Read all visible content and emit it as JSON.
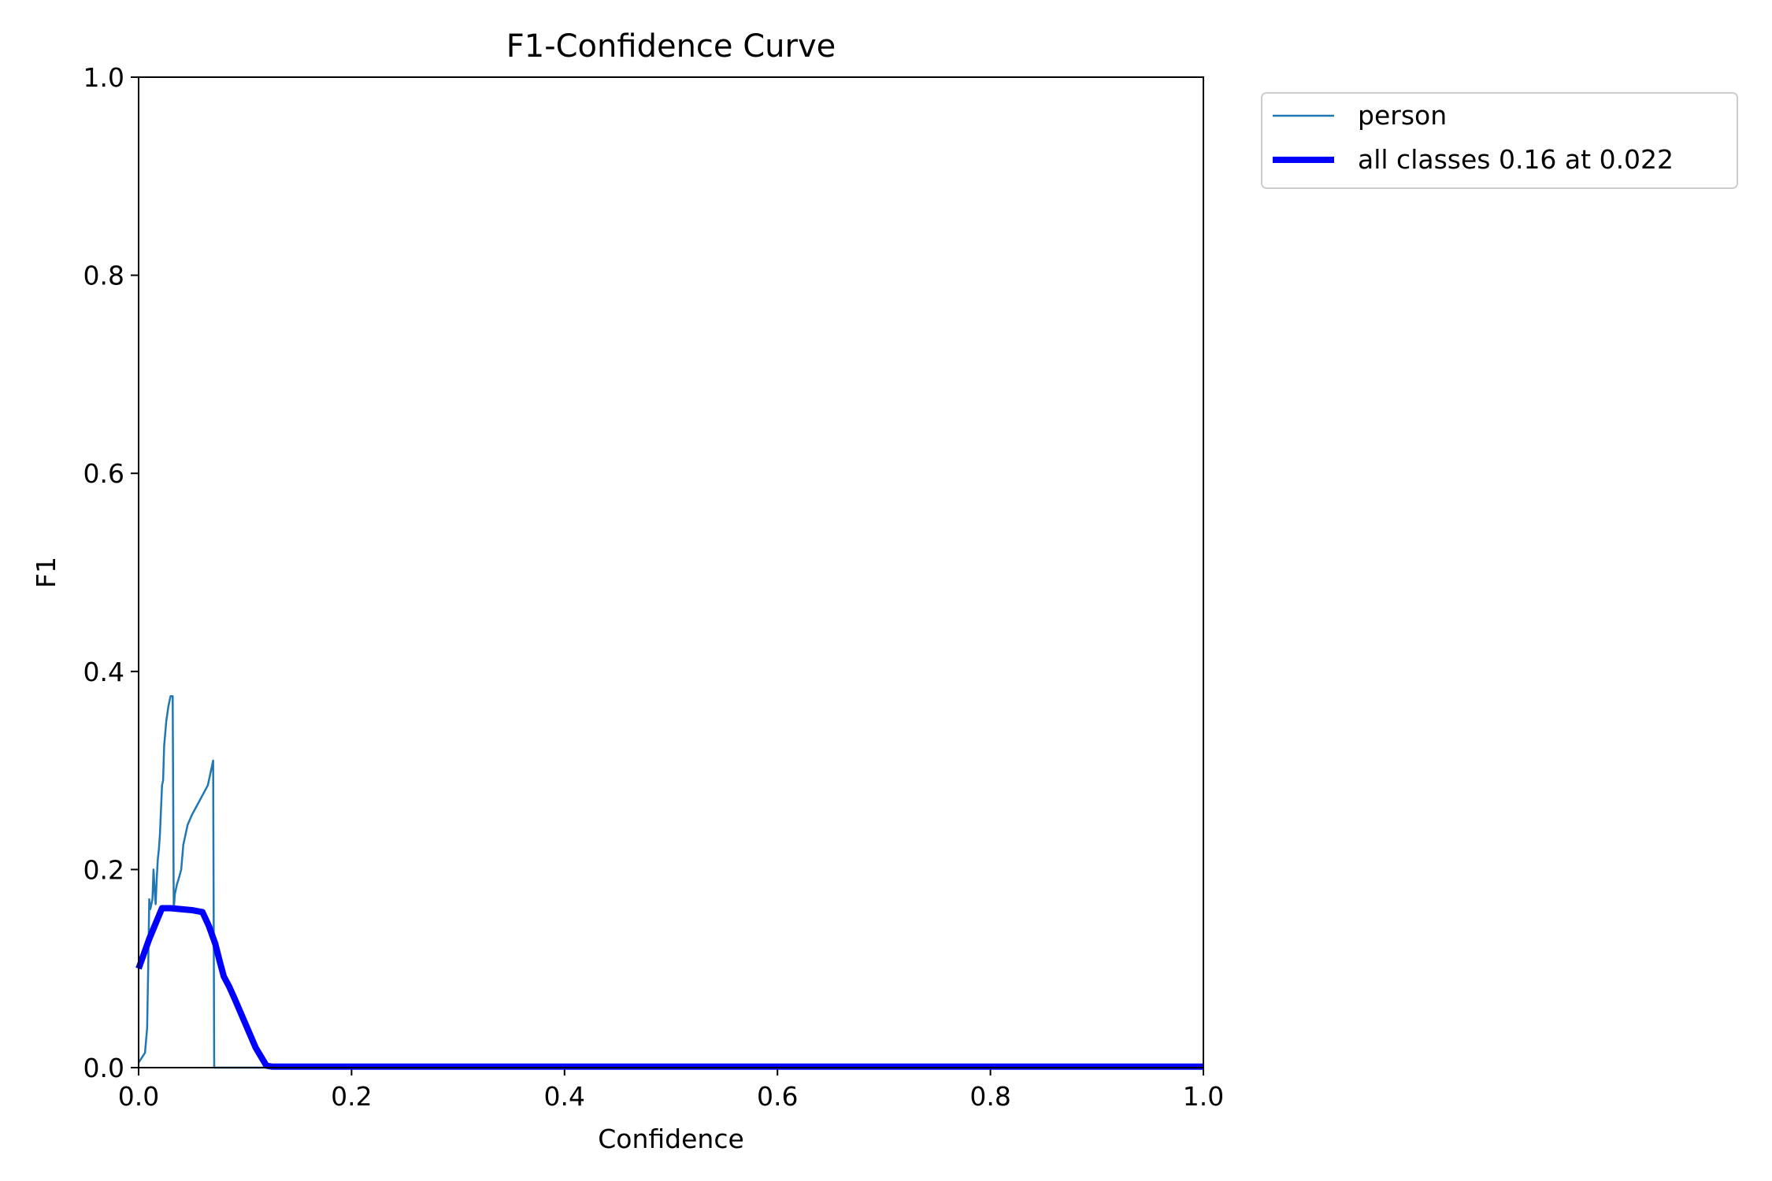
{
  "chart_data": {
    "type": "line",
    "title": "F1-Confidence Curve",
    "xlabel": "Confidence",
    "ylabel": "F1",
    "xlim": [
      0.0,
      1.0
    ],
    "ylim": [
      0.0,
      1.0
    ],
    "xticks": [
      "0.0",
      "0.2",
      "0.4",
      "0.6",
      "0.8",
      "1.0"
    ],
    "yticks": [
      "0.0",
      "0.2",
      "0.4",
      "0.6",
      "0.8",
      "1.0"
    ],
    "grid": false,
    "legend_position": "outside-top-right",
    "series": [
      {
        "name": "person",
        "color": "#1f77b4",
        "style": "thin",
        "x": [
          0.0,
          0.003,
          0.006,
          0.008,
          0.009,
          0.01,
          0.011,
          0.012,
          0.013,
          0.014,
          0.015,
          0.016,
          0.017,
          0.018,
          0.019,
          0.02,
          0.021,
          0.022,
          0.023,
          0.024,
          0.026,
          0.028,
          0.03,
          0.032,
          0.033,
          0.034,
          0.036,
          0.038,
          0.04,
          0.042,
          0.044,
          0.046,
          0.048,
          0.05,
          0.055,
          0.06,
          0.065,
          0.07,
          0.071,
          0.072,
          0.073,
          0.08,
          0.1,
          0.2,
          0.4,
          0.6,
          0.8,
          1.0
        ],
        "y": [
          0.005,
          0.01,
          0.015,
          0.04,
          0.1,
          0.17,
          0.16,
          0.165,
          0.17,
          0.2,
          0.18,
          0.165,
          0.19,
          0.21,
          0.22,
          0.235,
          0.26,
          0.285,
          0.29,
          0.325,
          0.35,
          0.365,
          0.375,
          0.375,
          0.16,
          0.175,
          0.185,
          0.192,
          0.2,
          0.225,
          0.235,
          0.245,
          0.25,
          0.255,
          0.265,
          0.275,
          0.285,
          0.31,
          0.0,
          0.0,
          0.0,
          0.0,
          0.0,
          0.0,
          0.0,
          0.0,
          0.0,
          0.0
        ]
      },
      {
        "name": "all classes 0.16 at 0.022",
        "color": "#0000ff",
        "style": "thick",
        "x": [
          0.0,
          0.01,
          0.022,
          0.03,
          0.04,
          0.05,
          0.06,
          0.066,
          0.072,
          0.076,
          0.08,
          0.085,
          0.09,
          0.1,
          0.11,
          0.12,
          0.125,
          0.2,
          0.4,
          0.6,
          0.8,
          1.0
        ],
        "y": [
          0.1,
          0.13,
          0.161,
          0.161,
          0.16,
          0.159,
          0.157,
          0.143,
          0.125,
          0.108,
          0.092,
          0.082,
          0.07,
          0.045,
          0.02,
          0.002,
          0.001,
          0.001,
          0.001,
          0.001,
          0.001,
          0.001
        ]
      }
    ]
  }
}
